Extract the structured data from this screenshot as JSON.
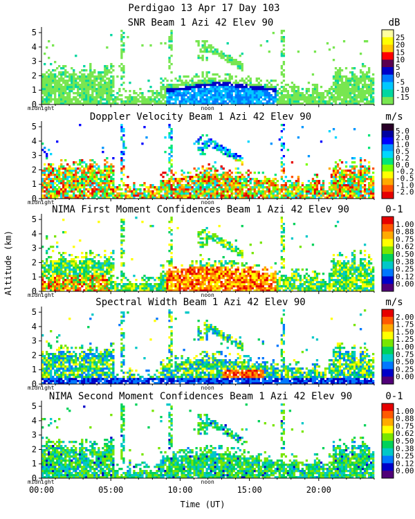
{
  "figure": {
    "title": "Perdigao  13 Apr 17 Day 103",
    "ylabel": "Altitude (km)",
    "xlabel": "Time (UT)",
    "x_ticks": [
      "00:00",
      "05:00",
      "10:00",
      "15:00",
      "20:00"
    ],
    "midnight_label": "midnight",
    "noon_label": "noon"
  },
  "chart_data": [
    {
      "type": "heatmap",
      "title": "SNR Beam 1 Azi  42 Elev 90",
      "units": "dB",
      "xlabel": "Time (UT)",
      "ylabel": "Altitude (km)",
      "xlim": [
        0,
        24
      ],
      "ylim": [
        0,
        5.2
      ],
      "yticks": [
        "0",
        "1",
        "2",
        "3",
        "4",
        "5"
      ],
      "colorbar_labels": [
        "25",
        "20",
        "15",
        "10",
        "5",
        "0",
        "-5",
        "-10",
        "-15"
      ],
      "colors": [
        "#ffffa0",
        "#ffff00",
        "#ffc800",
        "#ff0000",
        "#5a0050",
        "#0000c8",
        "#0078ff",
        "#00c8ff",
        "#00d7a0",
        "#78e650"
      ],
      "field": "snr"
    },
    {
      "type": "heatmap",
      "title": "Doppler Velocity Beam 1 Azi  42 Elev 90",
      "units": "m/s",
      "xlabel": "Time (UT)",
      "ylabel": "Altitude (km)",
      "xlim": [
        0,
        24
      ],
      "ylim": [
        0,
        5.2
      ],
      "yticks": [
        "0",
        "1",
        "2",
        "3",
        "4",
        "5"
      ],
      "colorbar_labels": [
        "5.0",
        "2.0",
        "1.0",
        "0.5",
        "0.2",
        "0.0",
        "-0.2",
        "-0.5",
        "-1.0",
        "-2.0"
      ],
      "colors": [
        "#280028",
        "#0000a0",
        "#0000ff",
        "#0096ff",
        "#00d7ff",
        "#00e678",
        "#78ff00",
        "#ffff00",
        "#ffaa00",
        "#ff5000",
        "#e60000"
      ],
      "field": "velocity"
    },
    {
      "type": "heatmap",
      "title": "NIMA First Moment Confidences Beam 1 Azi  42 Elev 90",
      "units": "0-1",
      "xlabel": "Time (UT)",
      "ylabel": "Altitude (km)",
      "xlim": [
        0,
        24
      ],
      "ylim": [
        0,
        5.2
      ],
      "yticks": [
        "0",
        "1",
        "2",
        "3",
        "4",
        "5"
      ],
      "colorbar_labels": [
        "1.00",
        "0.88",
        "0.75",
        "0.62",
        "0.50",
        "0.38",
        "0.25",
        "0.12",
        "0.00"
      ],
      "colors": [
        "#e60000",
        "#ff5a00",
        "#ffaa00",
        "#ffff00",
        "#78e600",
        "#00d25a",
        "#00c8c8",
        "#0078ff",
        "#0000c8",
        "#500078"
      ],
      "field": "conf1"
    },
    {
      "type": "heatmap",
      "title": "Spectral Width Beam 1 Azi  42 Elev 90",
      "units": "m/s",
      "xlabel": "Time (UT)",
      "ylabel": "Altitude (km)",
      "xlim": [
        0,
        24
      ],
      "ylim": [
        0,
        5.2
      ],
      "yticks": [
        "0",
        "1",
        "2",
        "3",
        "4",
        "5"
      ],
      "colorbar_labels": [
        "2.00",
        "1.75",
        "1.50",
        "1.25",
        "1.00",
        "0.75",
        "0.50",
        "0.25",
        "0.00"
      ],
      "colors": [
        "#e60000",
        "#ff5a00",
        "#ffaa00",
        "#ffff00",
        "#78e600",
        "#00d25a",
        "#00c8c8",
        "#0078ff",
        "#0000c8",
        "#500078"
      ],
      "field": "width"
    },
    {
      "type": "heatmap",
      "title": "NIMA Second Moment Confidences Beam 1 Azi  42 Elev 90",
      "units": "0-1",
      "xlabel": "Time (UT)",
      "ylabel": "Altitude (km)",
      "xlim": [
        0,
        24
      ],
      "ylim": [
        0,
        5.2
      ],
      "yticks": [
        "0",
        "1",
        "2",
        "3",
        "4",
        "5"
      ],
      "colorbar_labels": [
        "1.00",
        "0.88",
        "0.75",
        "0.62",
        "0.50",
        "0.38",
        "0.25",
        "0.12",
        "0.00"
      ],
      "colors": [
        "#e60000",
        "#ff5a00",
        "#ffaa00",
        "#ffff00",
        "#78e600",
        "#00d25a",
        "#00c8c8",
        "#0078ff",
        "#0000c8",
        "#500078"
      ],
      "field": "conf2"
    }
  ]
}
